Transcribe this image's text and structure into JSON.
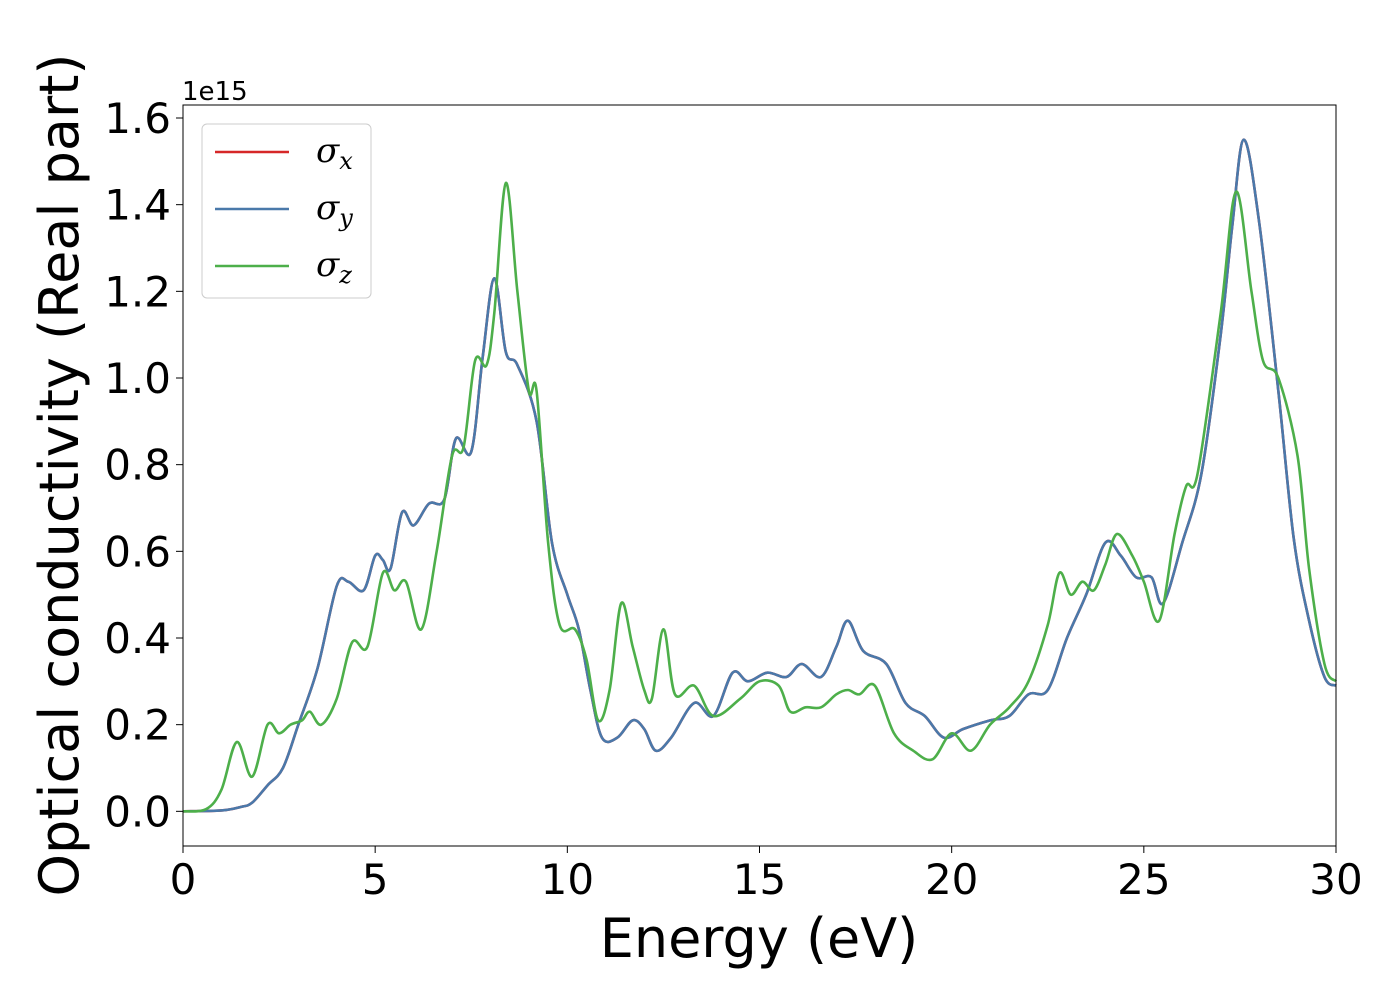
{
  "chart_data": {
    "type": "line",
    "xlabel": "Energy (eV)",
    "ylabel": "Optical conductivity (Real part)",
    "offset_label": "1e15",
    "xlim": [
      0,
      30
    ],
    "ylim": [
      -0.08,
      1.63
    ],
    "xticks": [
      0,
      5,
      10,
      15,
      20,
      25,
      30
    ],
    "yticks": [
      0.0,
      0.2,
      0.4,
      0.6,
      0.8,
      1.0,
      1.2,
      1.4,
      1.6
    ],
    "ytick_labels": [
      "0.0",
      "0.2",
      "0.4",
      "0.6",
      "0.8",
      "1.0",
      "1.2",
      "1.4",
      "1.6"
    ],
    "grid": false,
    "legend_position": "top-left",
    "series": [
      {
        "name": "σx",
        "symbol": "σ",
        "subscript": "x",
        "color": "#d62728",
        "points": [
          [
            0,
            0
          ],
          [
            1,
            0.002
          ],
          [
            1.5,
            0.01
          ],
          [
            1.8,
            0.02
          ],
          [
            2.2,
            0.06
          ],
          [
            2.6,
            0.1
          ],
          [
            3,
            0.2
          ],
          [
            3.5,
            0.33
          ],
          [
            4,
            0.52
          ],
          [
            4.3,
            0.53
          ],
          [
            4.7,
            0.51
          ],
          [
            5,
            0.59
          ],
          [
            5.2,
            0.58
          ],
          [
            5.4,
            0.56
          ],
          [
            5.7,
            0.69
          ],
          [
            6,
            0.66
          ],
          [
            6.4,
            0.71
          ],
          [
            6.8,
            0.72
          ],
          [
            7.1,
            0.86
          ],
          [
            7.5,
            0.83
          ],
          [
            7.8,
            1.05
          ],
          [
            8.1,
            1.23
          ],
          [
            8.4,
            1.06
          ],
          [
            8.7,
            1.03
          ],
          [
            9.2,
            0.9
          ],
          [
            9.6,
            0.62
          ],
          [
            10,
            0.5
          ],
          [
            10.3,
            0.42
          ],
          [
            10.6,
            0.28
          ],
          [
            10.9,
            0.17
          ],
          [
            11.3,
            0.17
          ],
          [
            11.7,
            0.21
          ],
          [
            12,
            0.19
          ],
          [
            12.3,
            0.14
          ],
          [
            12.7,
            0.17
          ],
          [
            13.3,
            0.25
          ],
          [
            13.8,
            0.22
          ],
          [
            14.3,
            0.32
          ],
          [
            14.7,
            0.3
          ],
          [
            15.2,
            0.32
          ],
          [
            15.7,
            0.31
          ],
          [
            16.1,
            0.34
          ],
          [
            16.6,
            0.31
          ],
          [
            17,
            0.38
          ],
          [
            17.3,
            0.44
          ],
          [
            17.7,
            0.37
          ],
          [
            18.3,
            0.34
          ],
          [
            18.8,
            0.25
          ],
          [
            19.3,
            0.22
          ],
          [
            19.8,
            0.17
          ],
          [
            20.3,
            0.19
          ],
          [
            21,
            0.21
          ],
          [
            21.5,
            0.22
          ],
          [
            22,
            0.27
          ],
          [
            22.5,
            0.28
          ],
          [
            23,
            0.4
          ],
          [
            23.5,
            0.5
          ],
          [
            24,
            0.62
          ],
          [
            24.4,
            0.59
          ],
          [
            24.8,
            0.54
          ],
          [
            25.2,
            0.54
          ],
          [
            25.5,
            0.48
          ],
          [
            26,
            0.62
          ],
          [
            26.5,
            0.78
          ],
          [
            27,
            1.1
          ],
          [
            27.3,
            1.35
          ],
          [
            27.6,
            1.55
          ],
          [
            28,
            1.36
          ],
          [
            28.5,
            0.97
          ],
          [
            28.9,
            0.63
          ],
          [
            29.3,
            0.44
          ],
          [
            29.7,
            0.31
          ],
          [
            30,
            0.29
          ]
        ]
      },
      {
        "name": "σy",
        "symbol": "σ",
        "subscript": "y",
        "color": "#4a79aa",
        "points": [
          [
            0,
            0
          ],
          [
            1,
            0.002
          ],
          [
            1.5,
            0.01
          ],
          [
            1.8,
            0.02
          ],
          [
            2.2,
            0.06
          ],
          [
            2.6,
            0.1
          ],
          [
            3,
            0.2
          ],
          [
            3.5,
            0.33
          ],
          [
            4,
            0.52
          ],
          [
            4.3,
            0.53
          ],
          [
            4.7,
            0.51
          ],
          [
            5,
            0.59
          ],
          [
            5.2,
            0.58
          ],
          [
            5.4,
            0.56
          ],
          [
            5.7,
            0.69
          ],
          [
            6,
            0.66
          ],
          [
            6.4,
            0.71
          ],
          [
            6.8,
            0.72
          ],
          [
            7.1,
            0.86
          ],
          [
            7.5,
            0.83
          ],
          [
            7.8,
            1.05
          ],
          [
            8.1,
            1.23
          ],
          [
            8.4,
            1.06
          ],
          [
            8.7,
            1.03
          ],
          [
            9.2,
            0.9
          ],
          [
            9.6,
            0.62
          ],
          [
            10,
            0.5
          ],
          [
            10.3,
            0.42
          ],
          [
            10.6,
            0.28
          ],
          [
            10.9,
            0.17
          ],
          [
            11.3,
            0.17
          ],
          [
            11.7,
            0.21
          ],
          [
            12,
            0.19
          ],
          [
            12.3,
            0.14
          ],
          [
            12.7,
            0.17
          ],
          [
            13.3,
            0.25
          ],
          [
            13.8,
            0.22
          ],
          [
            14.3,
            0.32
          ],
          [
            14.7,
            0.3
          ],
          [
            15.2,
            0.32
          ],
          [
            15.7,
            0.31
          ],
          [
            16.1,
            0.34
          ],
          [
            16.6,
            0.31
          ],
          [
            17,
            0.38
          ],
          [
            17.3,
            0.44
          ],
          [
            17.7,
            0.37
          ],
          [
            18.3,
            0.34
          ],
          [
            18.8,
            0.25
          ],
          [
            19.3,
            0.22
          ],
          [
            19.8,
            0.17
          ],
          [
            20.3,
            0.19
          ],
          [
            21,
            0.21
          ],
          [
            21.5,
            0.22
          ],
          [
            22,
            0.27
          ],
          [
            22.5,
            0.28
          ],
          [
            23,
            0.4
          ],
          [
            23.5,
            0.5
          ],
          [
            24,
            0.62
          ],
          [
            24.4,
            0.59
          ],
          [
            24.8,
            0.54
          ],
          [
            25.2,
            0.54
          ],
          [
            25.5,
            0.48
          ],
          [
            26,
            0.62
          ],
          [
            26.5,
            0.78
          ],
          [
            27,
            1.1
          ],
          [
            27.3,
            1.35
          ],
          [
            27.6,
            1.55
          ],
          [
            28,
            1.36
          ],
          [
            28.5,
            0.97
          ],
          [
            28.9,
            0.63
          ],
          [
            29.3,
            0.44
          ],
          [
            29.7,
            0.31
          ],
          [
            30,
            0.29
          ]
        ]
      },
      {
        "name": "σz",
        "symbol": "σ",
        "subscript": "z",
        "color": "#4daf4a",
        "points": [
          [
            0,
            0
          ],
          [
            0.6,
            0.005
          ],
          [
            1,
            0.05
          ],
          [
            1.4,
            0.16
          ],
          [
            1.8,
            0.08
          ],
          [
            2.2,
            0.2
          ],
          [
            2.5,
            0.18
          ],
          [
            2.8,
            0.2
          ],
          [
            3.1,
            0.21
          ],
          [
            3.3,
            0.23
          ],
          [
            3.6,
            0.2
          ],
          [
            4,
            0.26
          ],
          [
            4.4,
            0.39
          ],
          [
            4.8,
            0.38
          ],
          [
            5.2,
            0.55
          ],
          [
            5.5,
            0.51
          ],
          [
            5.8,
            0.53
          ],
          [
            6.2,
            0.42
          ],
          [
            6.6,
            0.6
          ],
          [
            7,
            0.82
          ],
          [
            7.3,
            0.84
          ],
          [
            7.6,
            1.04
          ],
          [
            7.9,
            1.03
          ],
          [
            8.1,
            1.15
          ],
          [
            8.4,
            1.45
          ],
          [
            8.7,
            1.2
          ],
          [
            9,
            0.97
          ],
          [
            9.2,
            0.97
          ],
          [
            9.5,
            0.62
          ],
          [
            9.8,
            0.43
          ],
          [
            10.2,
            0.42
          ],
          [
            10.5,
            0.35
          ],
          [
            10.8,
            0.21
          ],
          [
            11.1,
            0.28
          ],
          [
            11.4,
            0.48
          ],
          [
            11.7,
            0.38
          ],
          [
            12,
            0.28
          ],
          [
            12.2,
            0.26
          ],
          [
            12.5,
            0.42
          ],
          [
            12.8,
            0.27
          ],
          [
            13.3,
            0.29
          ],
          [
            13.8,
            0.22
          ],
          [
            14.5,
            0.26
          ],
          [
            15,
            0.3
          ],
          [
            15.5,
            0.29
          ],
          [
            15.8,
            0.23
          ],
          [
            16.2,
            0.24
          ],
          [
            16.6,
            0.24
          ],
          [
            17,
            0.27
          ],
          [
            17.3,
            0.28
          ],
          [
            17.6,
            0.27
          ],
          [
            18,
            0.29
          ],
          [
            18.5,
            0.18
          ],
          [
            19,
            0.14
          ],
          [
            19.5,
            0.12
          ],
          [
            20,
            0.18
          ],
          [
            20.5,
            0.14
          ],
          [
            21,
            0.2
          ],
          [
            21.5,
            0.24
          ],
          [
            22,
            0.3
          ],
          [
            22.5,
            0.43
          ],
          [
            22.8,
            0.55
          ],
          [
            23.1,
            0.5
          ],
          [
            23.4,
            0.53
          ],
          [
            23.7,
            0.51
          ],
          [
            24,
            0.57
          ],
          [
            24.3,
            0.64
          ],
          [
            24.7,
            0.59
          ],
          [
            25,
            0.53
          ],
          [
            25.4,
            0.44
          ],
          [
            25.8,
            0.64
          ],
          [
            26.1,
            0.75
          ],
          [
            26.4,
            0.78
          ],
          [
            27,
            1.15
          ],
          [
            27.4,
            1.43
          ],
          [
            27.8,
            1.2
          ],
          [
            28.1,
            1.04
          ],
          [
            28.5,
            1.0
          ],
          [
            29,
            0.82
          ],
          [
            29.3,
            0.56
          ],
          [
            29.7,
            0.34
          ],
          [
            30,
            0.3
          ]
        ]
      }
    ]
  }
}
